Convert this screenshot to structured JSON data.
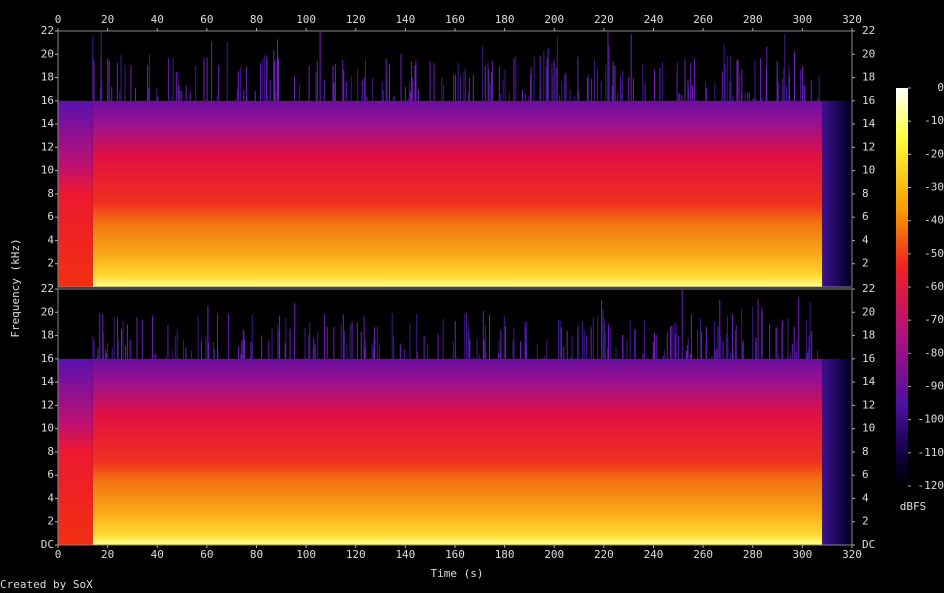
{
  "chart_data": {
    "type": "spectrogram",
    "xlabel": "Time (s)",
    "ylabel": "Frequency (kHz)",
    "xlim": [
      0,
      320
    ],
    "xticks": [
      0,
      20,
      40,
      60,
      80,
      100,
      120,
      140,
      160,
      180,
      200,
      220,
      240,
      260,
      280,
      300,
      320
    ],
    "ylim": [
      0,
      22
    ],
    "channels": [
      {
        "yticks": [
          2,
          4,
          6,
          8,
          10,
          12,
          14,
          16,
          18,
          20,
          22
        ]
      },
      {
        "yticks": [
          {
            "value": 0,
            "label": "DC"
          },
          2,
          4,
          6,
          8,
          10,
          12,
          14,
          16,
          18,
          20,
          22
        ]
      }
    ],
    "colorbar": {
      "label": "dBFS",
      "lim": [
        -120,
        0
      ],
      "ticks": [
        0,
        -10,
        -20,
        -30,
        -40,
        -50,
        -60,
        -70,
        -80,
        -90,
        -100,
        -110,
        -120
      ]
    }
  },
  "credit": "Created by SoX"
}
